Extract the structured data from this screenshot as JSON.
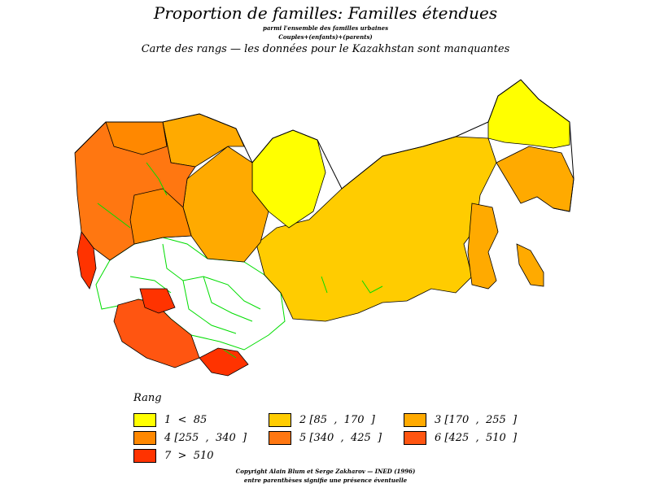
{
  "header": {
    "title": "Proportion de familles: Familles étendues",
    "subtitle_1": "parmi l'ensemble des familles urbaines",
    "subtitle_2": "Couples+(enfants)+(parents)",
    "subtitle_3": "Carte des  rangs  —  les données pour le Kazakhstan sont manquantes"
  },
  "legend": {
    "title": "Rang",
    "items": [
      {
        "label": "1  <  85",
        "color": "#ffff00"
      },
      {
        "label": "2 [85  ,  170  ]",
        "color": "#ffcc00"
      },
      {
        "label": "3 [170  ,  255  ]",
        "color": "#ffaa00"
      },
      {
        "label": "4 [255  ,  340  ]",
        "color": "#ff8800"
      },
      {
        "label": "5 [340  ,  425  ]",
        "color": "#ff7711"
      },
      {
        "label": "6 [425  ,  510  ]",
        "color": "#ff5511"
      },
      {
        "label": "7  >  510",
        "color": "#ff3300"
      }
    ]
  },
  "map": {
    "missing_color": "#ffffff",
    "border_color": "#00dd00"
  },
  "footer": {
    "copyright": "Copyright Alain Blum et Serge Zakharov  —  INED (1996)",
    "note": "entre parenthèses signifie une présence éventuelle"
  }
}
